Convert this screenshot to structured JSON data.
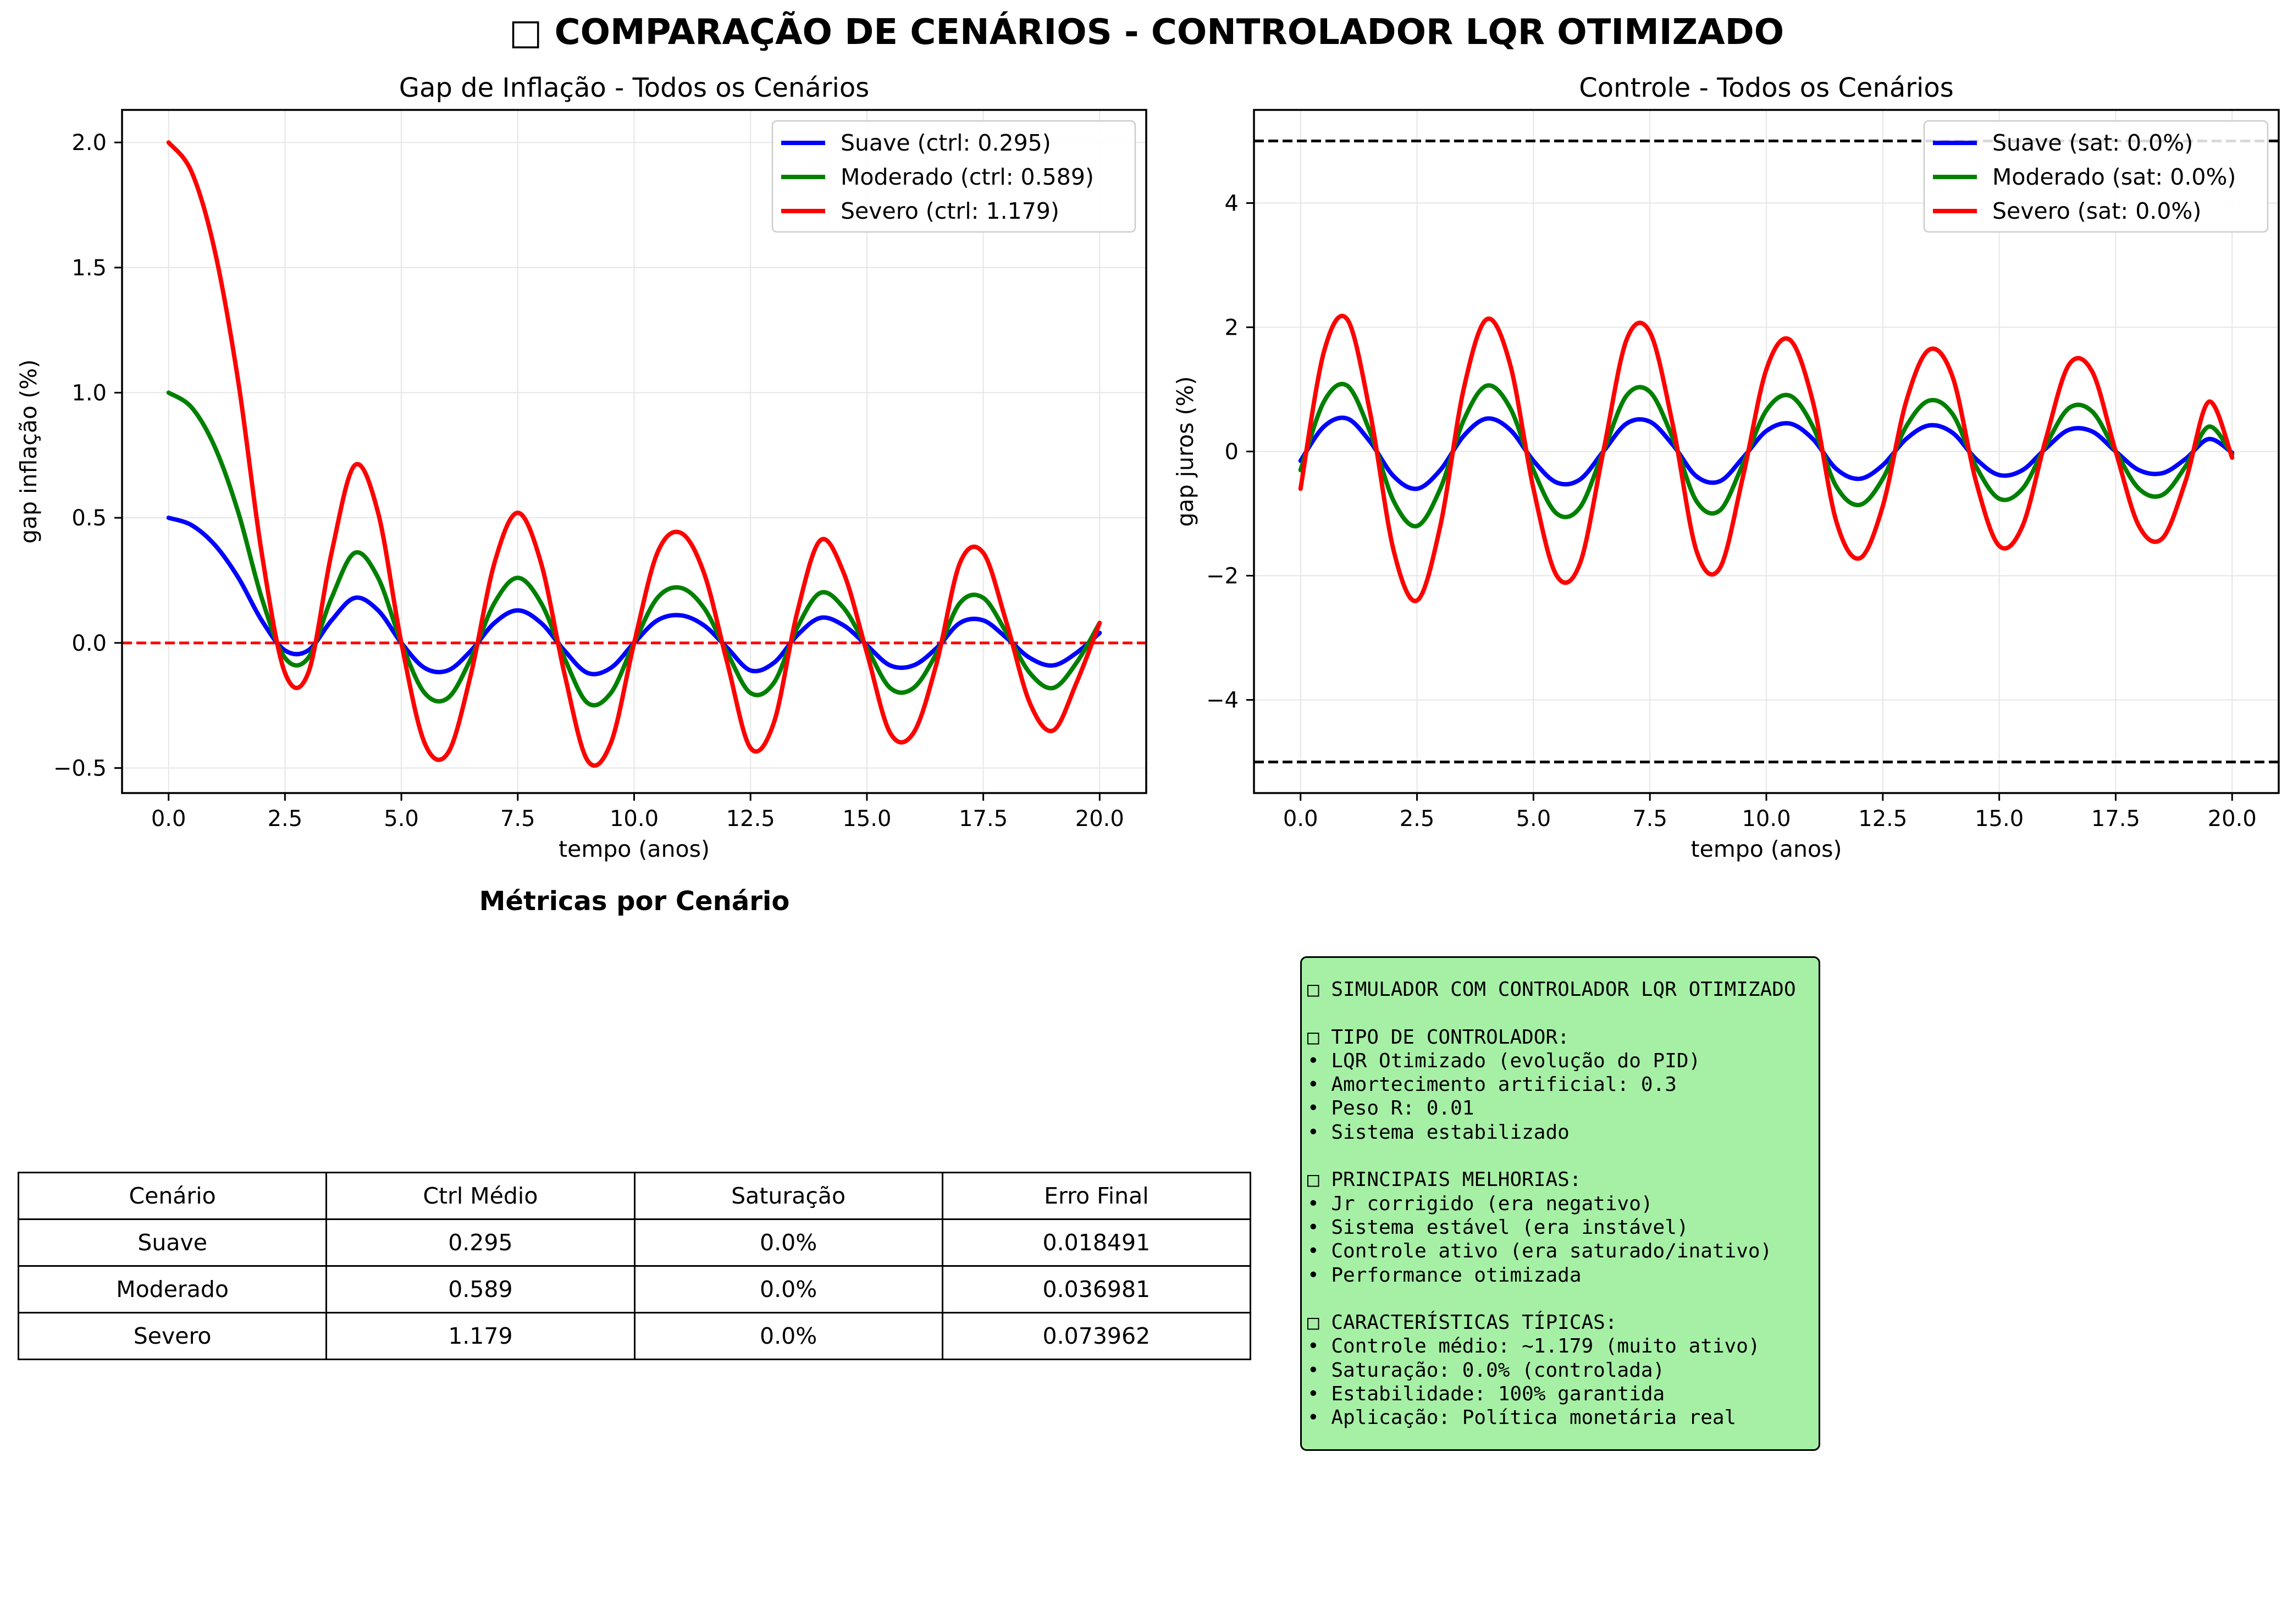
{
  "title": "□ COMPARAÇÃO DE CENÁRIOS - CONTROLADOR LQR OTIMIZADO",
  "colors": {
    "suave": "#0000ff",
    "moderado": "#008000",
    "severo": "#ff0000",
    "grid": "#e6e6e6",
    "box": "#a6f0a6"
  },
  "chart_data": [
    {
      "type": "line",
      "title": "Gap de Inflação - Todos os Cenários",
      "xlabel": "tempo (anos)",
      "ylabel": "gap inflação (%)",
      "xlim": [
        -1.0,
        21.0
      ],
      "ylim": [
        -0.6,
        2.13
      ],
      "xticks": [
        "0.0",
        "2.5",
        "5.0",
        "7.5",
        "10.0",
        "12.5",
        "15.0",
        "17.5",
        "20.0"
      ],
      "yticks": [
        "−0.5",
        "0.0",
        "0.5",
        "1.0",
        "1.5",
        "2.0"
      ],
      "grid": true,
      "legend_position": "top-right",
      "reference_lines": [
        {
          "y": 0.0,
          "style": "dashed",
          "color": "#ff0000"
        }
      ],
      "x": [
        0,
        0.5,
        1,
        1.5,
        2,
        2.5,
        3,
        3.5,
        4,
        4.5,
        5,
        5.5,
        6,
        6.5,
        7,
        7.5,
        8,
        8.5,
        9,
        9.5,
        10,
        10.5,
        11,
        11.5,
        12,
        12.5,
        13,
        13.5,
        14,
        14.5,
        15,
        15.5,
        16,
        16.5,
        17,
        17.5,
        18,
        18.5,
        19,
        19.5,
        20
      ],
      "series": [
        {
          "name": "Suave (ctrl: 0.295)",
          "color": "#0000ff",
          "values": [
            0.5,
            0.47,
            0.39,
            0.26,
            0.09,
            -0.03,
            -0.03,
            0.09,
            0.18,
            0.13,
            0.0,
            -0.1,
            -0.11,
            -0.03,
            0.08,
            0.13,
            0.08,
            -0.03,
            -0.12,
            -0.1,
            0.0,
            0.09,
            0.11,
            0.07,
            -0.02,
            -0.11,
            -0.08,
            0.03,
            0.1,
            0.07,
            -0.01,
            -0.09,
            -0.09,
            -0.02,
            0.08,
            0.09,
            0.02,
            -0.06,
            -0.09,
            -0.04,
            0.04
          ]
        },
        {
          "name": "Moderado (ctrl: 0.589)",
          "color": "#008000",
          "values": [
            1.0,
            0.94,
            0.78,
            0.52,
            0.18,
            -0.06,
            -0.06,
            0.18,
            0.36,
            0.26,
            0.0,
            -0.2,
            -0.22,
            -0.06,
            0.16,
            0.26,
            0.16,
            -0.06,
            -0.24,
            -0.2,
            0.0,
            0.18,
            0.22,
            0.14,
            -0.04,
            -0.2,
            -0.16,
            0.06,
            0.2,
            0.14,
            -0.02,
            -0.18,
            -0.18,
            -0.04,
            0.16,
            0.18,
            0.04,
            -0.12,
            -0.18,
            -0.08,
            0.08
          ]
        },
        {
          "name": "Severo (ctrl: 1.179)",
          "color": "#ff0000",
          "values": [
            2.0,
            1.88,
            1.56,
            1.04,
            0.36,
            -0.12,
            -0.12,
            0.36,
            0.71,
            0.52,
            0.0,
            -0.4,
            -0.44,
            -0.12,
            0.32,
            0.52,
            0.32,
            -0.12,
            -0.47,
            -0.4,
            0.0,
            0.36,
            0.44,
            0.28,
            -0.08,
            -0.42,
            -0.32,
            0.12,
            0.41,
            0.28,
            -0.04,
            -0.36,
            -0.36,
            -0.08,
            0.32,
            0.36,
            0.08,
            -0.24,
            -0.35,
            -0.16,
            0.08
          ]
        }
      ]
    },
    {
      "type": "line",
      "title": "Controle - Todos os Cenários",
      "xlabel": "tempo (anos)",
      "ylabel": "gap juros (%)",
      "xlim": [
        -1.0,
        21.0
      ],
      "ylim": [
        -5.5,
        5.5
      ],
      "xticks": [
        "0.0",
        "2.5",
        "5.0",
        "7.5",
        "10.0",
        "12.5",
        "15.0",
        "17.5",
        "20.0"
      ],
      "yticks": [
        "−4",
        "−2",
        "0",
        "2",
        "4"
      ],
      "grid": true,
      "legend_position": "top-right",
      "reference_lines": [
        {
          "y": 5.0,
          "style": "dashed",
          "color": "#000000"
        },
        {
          "y": -5.0,
          "style": "dashed",
          "color": "#000000"
        }
      ],
      "x": [
        0,
        0.5,
        1,
        1.5,
        2,
        2.5,
        3,
        3.5,
        4,
        4.5,
        5,
        5.5,
        6,
        6.5,
        7,
        7.5,
        8,
        8.5,
        9,
        9.5,
        10,
        10.5,
        11,
        11.5,
        12,
        12.5,
        13,
        13.5,
        14,
        14.5,
        15,
        15.5,
        16,
        16.5,
        17,
        17.5,
        18,
        18.5,
        19,
        19.5,
        20
      ],
      "series": [
        {
          "name": "Suave (sat: 0.0%)",
          "color": "#0000ff",
          "values": [
            -0.15,
            0.4,
            0.53,
            0.15,
            -0.4,
            -0.6,
            -0.3,
            0.25,
            0.53,
            0.35,
            -0.15,
            -0.5,
            -0.45,
            0.0,
            0.45,
            0.48,
            0.1,
            -0.4,
            -0.48,
            -0.1,
            0.33,
            0.45,
            0.2,
            -0.28,
            -0.44,
            -0.22,
            0.2,
            0.42,
            0.3,
            -0.12,
            -0.38,
            -0.3,
            0.05,
            0.35,
            0.32,
            0.0,
            -0.3,
            -0.35,
            -0.12,
            0.2,
            -0.02
          ]
        },
        {
          "name": "Moderado (sat: 0.0%)",
          "color": "#008000",
          "values": [
            -0.3,
            0.8,
            1.06,
            0.3,
            -0.8,
            -1.2,
            -0.6,
            0.5,
            1.06,
            0.7,
            -0.3,
            -1.0,
            -0.9,
            0.0,
            0.9,
            0.96,
            0.2,
            -0.8,
            -0.95,
            -0.2,
            0.66,
            0.9,
            0.4,
            -0.56,
            -0.86,
            -0.44,
            0.4,
            0.82,
            0.6,
            -0.24,
            -0.76,
            -0.6,
            0.1,
            0.7,
            0.64,
            0.0,
            -0.6,
            -0.7,
            -0.24,
            0.4,
            -0.05
          ]
        },
        {
          "name": "Severo (sat: 0.0%)",
          "color": "#ff0000",
          "values": [
            -0.6,
            1.6,
            2.13,
            0.6,
            -1.6,
            -2.4,
            -1.2,
            1.0,
            2.13,
            1.4,
            -0.6,
            -2.0,
            -1.8,
            0.0,
            1.8,
            1.92,
            0.4,
            -1.6,
            -1.88,
            -0.4,
            1.32,
            1.8,
            0.8,
            -1.12,
            -1.72,
            -0.88,
            0.8,
            1.64,
            1.2,
            -0.48,
            -1.52,
            -1.2,
            0.2,
            1.4,
            1.28,
            0.0,
            -1.2,
            -1.4,
            -0.48,
            0.8,
            -0.1
          ]
        }
      ]
    }
  ],
  "metrics": {
    "title": "Métricas por Cenário",
    "headers": [
      "Cenário",
      "Ctrl Médio",
      "Saturação",
      "Erro Final"
    ],
    "rows": [
      [
        "Suave",
        "0.295",
        "0.0%",
        "0.018491"
      ],
      [
        "Moderado",
        "0.589",
        "0.0%",
        "0.036981"
      ],
      [
        "Severo",
        "1.179",
        "0.0%",
        "0.073962"
      ]
    ]
  },
  "info_box": {
    "blocks": [
      [
        "□ SIMULADOR COM CONTROLADOR LQR OTIMIZADO"
      ],
      [
        "□ TIPO DE CONTROLADOR:",
        "• LQR Otimizado (evolução do PID)",
        "• Amortecimento artificial: 0.3",
        "• Peso R: 0.01",
        "• Sistema estabilizado"
      ],
      [
        "□ PRINCIPAIS MELHORIAS:",
        "• Jr corrigido (era negativo)",
        "• Sistema estável (era instável)",
        "• Controle ativo (era saturado/inativo)",
        "• Performance otimizada"
      ],
      [
        "□ CARACTERÍSTICAS TÍPICAS:",
        "• Controle médio: ~1.179 (muito ativo)",
        "• Saturação: 0.0% (controlada)",
        "• Estabilidade: 100% garantida",
        "• Aplicação: Política monetária real"
      ]
    ]
  }
}
